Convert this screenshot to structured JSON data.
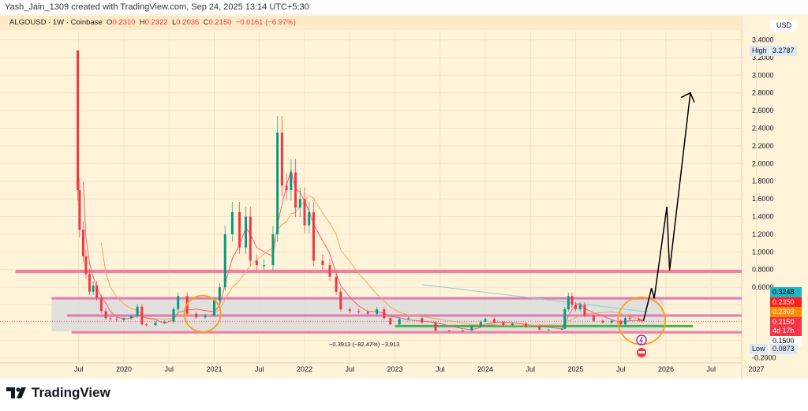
{
  "credit": "Yash_Jain_1309 created with TradingView.com, Sep 24, 2025 13:14 UTC+5:30",
  "legend": {
    "symbol": "ALGOUSD · 1W · Coinbase",
    "o_label": "O",
    "o": "0.2310",
    "h_label": "H",
    "h": "0.2322",
    "l_label": "L",
    "l": "0.2036",
    "c_label": "C",
    "c": "0.2150",
    "change": "−0.0161 (−6.97%)"
  },
  "brand": "TradingView",
  "colors": {
    "background": "#fff3da",
    "up": "#089981",
    "down": "#f23645",
    "zone_line": "#f07fa0",
    "support": "#4caf50",
    "circle": "#f7a21b",
    "projection": "#000000"
  },
  "icons": [
    "lightning-event-icon",
    "us-flag-event-icon",
    "tradingview-logo-icon"
  ],
  "chart_data": {
    "type": "candlestick",
    "currency": "USD",
    "ylim": [
      -0.2,
      3.4
    ],
    "y_ticks": [
      "3.4000",
      "3.2000",
      "3.0000",
      "2.8000",
      "2.6000",
      "2.4000",
      "2.2000",
      "2.0000",
      "1.8000",
      "1.6000",
      "1.4000",
      "1.2000",
      "1.0000",
      "0.8000",
      "0.6000",
      "0.1500",
      "-0.2000"
    ],
    "x_ticks": [
      {
        "label": "Jul",
        "t": 2019.5
      },
      {
        "label": "2020",
        "t": 2020
      },
      {
        "label": "Jul",
        "t": 2020.5
      },
      {
        "label": "2021",
        "t": 2021
      },
      {
        "label": "Jul",
        "t": 2021.5
      },
      {
        "label": "2022",
        "t": 2022
      },
      {
        "label": "Jul",
        "t": 2022.5
      },
      {
        "label": "2023",
        "t": 2023
      },
      {
        "label": "Jul",
        "t": 2023.5
      },
      {
        "label": "2024",
        "t": 2024
      },
      {
        "label": "Jul",
        "t": 2024.5
      },
      {
        "label": "2025",
        "t": 2025
      },
      {
        "label": "Jul",
        "t": 2025.5
      },
      {
        "label": "2026",
        "t": 2026
      },
      {
        "label": "Jul",
        "t": 2026.5
      },
      {
        "label": "2027",
        "t": 2027
      }
    ],
    "high": {
      "label": "High",
      "value": "3.2787"
    },
    "low": {
      "label": "Low",
      "value": "0.0873"
    },
    "price_labels": [
      {
        "value": "0.3248",
        "color": "#22b5c8",
        "text": "#000"
      },
      {
        "value": "0.2350",
        "color": "#ff1e1e",
        "text": "#fff"
      },
      {
        "value": "0.2303",
        "color": "#ff8c00",
        "text": "#fff"
      },
      {
        "value": "0.2150",
        "sub": "4d 17h",
        "color": "#f23645",
        "text": "#fff"
      },
      {
        "value": "0.1500",
        "color": "#ffffff",
        "text": "#000"
      }
    ],
    "closes": [
      [
        2019.47,
        3.28
      ],
      [
        2019.49,
        1.7
      ],
      [
        2019.51,
        1.25
      ],
      [
        2019.55,
        0.95
      ],
      [
        2019.58,
        0.75
      ],
      [
        2019.62,
        0.55
      ],
      [
        2019.66,
        0.62
      ],
      [
        2019.7,
        0.48
      ],
      [
        2019.75,
        0.33
      ],
      [
        2019.8,
        0.25
      ],
      [
        2019.85,
        0.24
      ],
      [
        2019.92,
        0.23
      ],
      [
        2020.0,
        0.25
      ],
      [
        2020.08,
        0.27
      ],
      [
        2020.15,
        0.38
      ],
      [
        2020.2,
        0.18
      ],
      [
        2020.25,
        0.17
      ],
      [
        2020.35,
        0.2
      ],
      [
        2020.45,
        0.21
      ],
      [
        2020.55,
        0.35
      ],
      [
        2020.6,
        0.5
      ],
      [
        2020.7,
        0.3
      ],
      [
        2020.8,
        0.26
      ],
      [
        2020.9,
        0.28
      ],
      [
        2021.0,
        0.45
      ],
      [
        2021.06,
        0.6
      ],
      [
        2021.12,
        1.2
      ],
      [
        2021.2,
        1.45
      ],
      [
        2021.28,
        1.05
      ],
      [
        2021.35,
        1.4
      ],
      [
        2021.4,
        0.9
      ],
      [
        2021.47,
        0.85
      ],
      [
        2021.55,
        0.85
      ],
      [
        2021.65,
        1.2
      ],
      [
        2021.7,
        2.35
      ],
      [
        2021.75,
        1.75
      ],
      [
        2021.8,
        1.7
      ],
      [
        2021.85,
        1.9
      ],
      [
        2021.9,
        1.5
      ],
      [
        2021.95,
        1.6
      ],
      [
        2022.0,
        1.3
      ],
      [
        2022.05,
        1.45
      ],
      [
        2022.1,
        0.9
      ],
      [
        2022.2,
        0.85
      ],
      [
        2022.28,
        0.72
      ],
      [
        2022.35,
        0.55
      ],
      [
        2022.4,
        0.35
      ],
      [
        2022.5,
        0.33
      ],
      [
        2022.6,
        0.32
      ],
      [
        2022.7,
        0.3
      ],
      [
        2022.8,
        0.35
      ],
      [
        2022.88,
        0.25
      ],
      [
        2022.95,
        0.18
      ],
      [
        2023.05,
        0.24
      ],
      [
        2023.15,
        0.25
      ],
      [
        2023.3,
        0.2
      ],
      [
        2023.45,
        0.11
      ],
      [
        2023.6,
        0.1
      ],
      [
        2023.75,
        0.11
      ],
      [
        2023.85,
        0.16
      ],
      [
        2023.95,
        0.21
      ],
      [
        2024.0,
        0.24
      ],
      [
        2024.1,
        0.2
      ],
      [
        2024.2,
        0.17
      ],
      [
        2024.3,
        0.19
      ],
      [
        2024.45,
        0.15
      ],
      [
        2024.6,
        0.12
      ],
      [
        2024.7,
        0.12
      ],
      [
        2024.85,
        0.13
      ],
      [
        2024.88,
        0.35
      ],
      [
        2024.92,
        0.5
      ],
      [
        2024.96,
        0.4
      ],
      [
        2025.0,
        0.35
      ],
      [
        2025.05,
        0.4
      ],
      [
        2025.1,
        0.28
      ],
      [
        2025.2,
        0.22
      ],
      [
        2025.3,
        0.2
      ],
      [
        2025.4,
        0.22
      ],
      [
        2025.5,
        0.18
      ],
      [
        2025.55,
        0.25
      ],
      [
        2025.6,
        0.24
      ],
      [
        2025.7,
        0.23
      ],
      [
        2025.73,
        0.215
      ]
    ],
    "zone": {
      "top": 0.475,
      "bottom": 0.1,
      "from": 2019.2,
      "to": 2025.98
    },
    "horizontal_lines": [
      {
        "price": 0.78,
        "from": 2018.8,
        "color": "#f07fa0"
      },
      {
        "price": 0.475,
        "from": 2019.2,
        "color": "#e07ab0"
      },
      {
        "price": 0.28,
        "from": 2019.37,
        "color": "#e07ab0"
      },
      {
        "price": 0.09,
        "from": 2019.42,
        "color": "#f07fa0"
      },
      {
        "price": 0.16,
        "from": 2023.0,
        "to": 2026.3,
        "color": "#4caf50"
      }
    ],
    "circles": [
      {
        "t": 2020.87,
        "price": 0.3
      },
      {
        "t": 2025.73,
        "price": 0.22
      }
    ],
    "projection": [
      [
        2025.75,
        0.215
      ],
      [
        2025.84,
        0.59
      ],
      [
        2025.87,
        0.475
      ],
      [
        2026.01,
        1.51
      ],
      [
        2026.04,
        0.79
      ],
      [
        2026.27,
        2.8
      ]
    ],
    "trend_line": [
      [
        2023.3,
        0.63
      ],
      [
        2025.8,
        0.32
      ]
    ],
    "measurement": "−0.3913 (−82.47%) −3,913"
  }
}
